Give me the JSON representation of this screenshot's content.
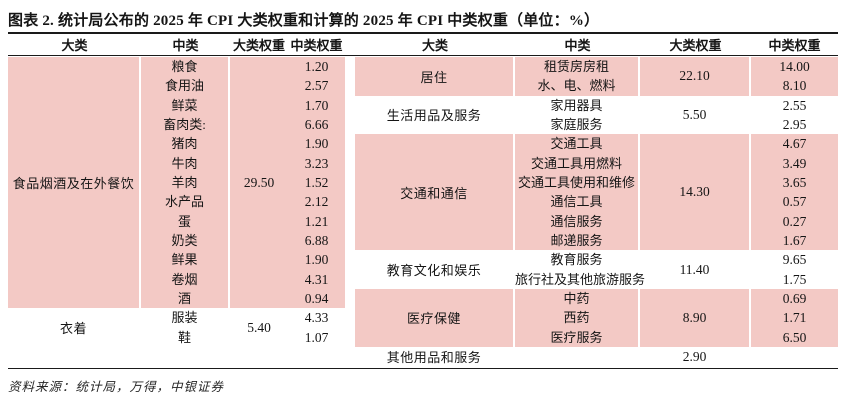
{
  "title": "图表 2. 统计局公布的 2025 年 CPI 大类权重和计算的 2025 年 CPI 中类权重（单位：%）",
  "column_headers": {
    "major": "大类",
    "middle": "中类",
    "major_weight": "大类权重",
    "middle_weight": "中类权重"
  },
  "colors": {
    "row_pink": "#F3C9C5",
    "rule": "#1a1a1a",
    "text": "#151515"
  },
  "left_table": {
    "sections": [
      {
        "major": "食品烟酒及在外餐饮",
        "major_weight": "29.50",
        "shaded": true,
        "rows": [
          {
            "middle": "粮食",
            "middle_weight": "1.20"
          },
          {
            "middle": "食用油",
            "middle_weight": "2.57"
          },
          {
            "middle": "鲜菜",
            "middle_weight": "1.70"
          },
          {
            "middle": "畜肉类:",
            "middle_weight": "6.66"
          },
          {
            "middle": "猪肉",
            "middle_weight": "1.90"
          },
          {
            "middle": "牛肉",
            "middle_weight": "3.23"
          },
          {
            "middle": "羊肉",
            "middle_weight": "1.52"
          },
          {
            "middle": "水产品",
            "middle_weight": "2.12"
          },
          {
            "middle": "蛋",
            "middle_weight": "1.21"
          },
          {
            "middle": "奶类",
            "middle_weight": "6.88"
          },
          {
            "middle": "鲜果",
            "middle_weight": "1.90"
          },
          {
            "middle": "卷烟",
            "middle_weight": "4.31"
          },
          {
            "middle": "酒",
            "middle_weight": "0.94"
          }
        ]
      },
      {
        "major": "衣着",
        "major_weight": "5.40",
        "shaded": false,
        "rows": [
          {
            "middle": "服装",
            "middle_weight": "4.33"
          },
          {
            "middle": "鞋",
            "middle_weight": "1.07"
          }
        ]
      }
    ]
  },
  "right_table": {
    "sections": [
      {
        "major": "居住",
        "major_weight": "22.10",
        "shaded": true,
        "rows": [
          {
            "middle": "租赁房房租",
            "middle_weight": "14.00"
          },
          {
            "middle": "水、电、燃料",
            "middle_weight": "8.10"
          }
        ]
      },
      {
        "major": "生活用品及服务",
        "major_weight": "5.50",
        "shaded": false,
        "rows": [
          {
            "middle": "家用器具",
            "middle_weight": "2.55"
          },
          {
            "middle": "家庭服务",
            "middle_weight": "2.95"
          }
        ]
      },
      {
        "major": "交通和通信",
        "major_weight": "14.30",
        "shaded": true,
        "rows": [
          {
            "middle": "交通工具",
            "middle_weight": "4.67"
          },
          {
            "middle": "交通工具用燃料",
            "middle_weight": "3.49"
          },
          {
            "middle": "交通工具使用和维修",
            "middle_weight": "3.65"
          },
          {
            "middle": "通信工具",
            "middle_weight": "0.57"
          },
          {
            "middle": "通信服务",
            "middle_weight": "0.27"
          },
          {
            "middle": "邮递服务",
            "middle_weight": "1.67"
          }
        ]
      },
      {
        "major": "教育文化和娱乐",
        "major_weight": "11.40",
        "shaded": false,
        "rows": [
          {
            "middle": "教育服务",
            "middle_weight": "9.65"
          },
          {
            "middle": "旅行社及其他旅游服务",
            "middle_weight": "1.75"
          }
        ]
      },
      {
        "major": "医疗保健",
        "major_weight": "8.90",
        "shaded": true,
        "rows": [
          {
            "middle": "中药",
            "middle_weight": "0.69"
          },
          {
            "middle": "西药",
            "middle_weight": "1.71"
          },
          {
            "middle": "医疗服务",
            "middle_weight": "6.50"
          }
        ]
      },
      {
        "major": "其他用品和服务",
        "major_weight": "2.90",
        "shaded": false,
        "rows": []
      }
    ]
  },
  "source_note": "资料来源：统计局，万得，中银证券"
}
